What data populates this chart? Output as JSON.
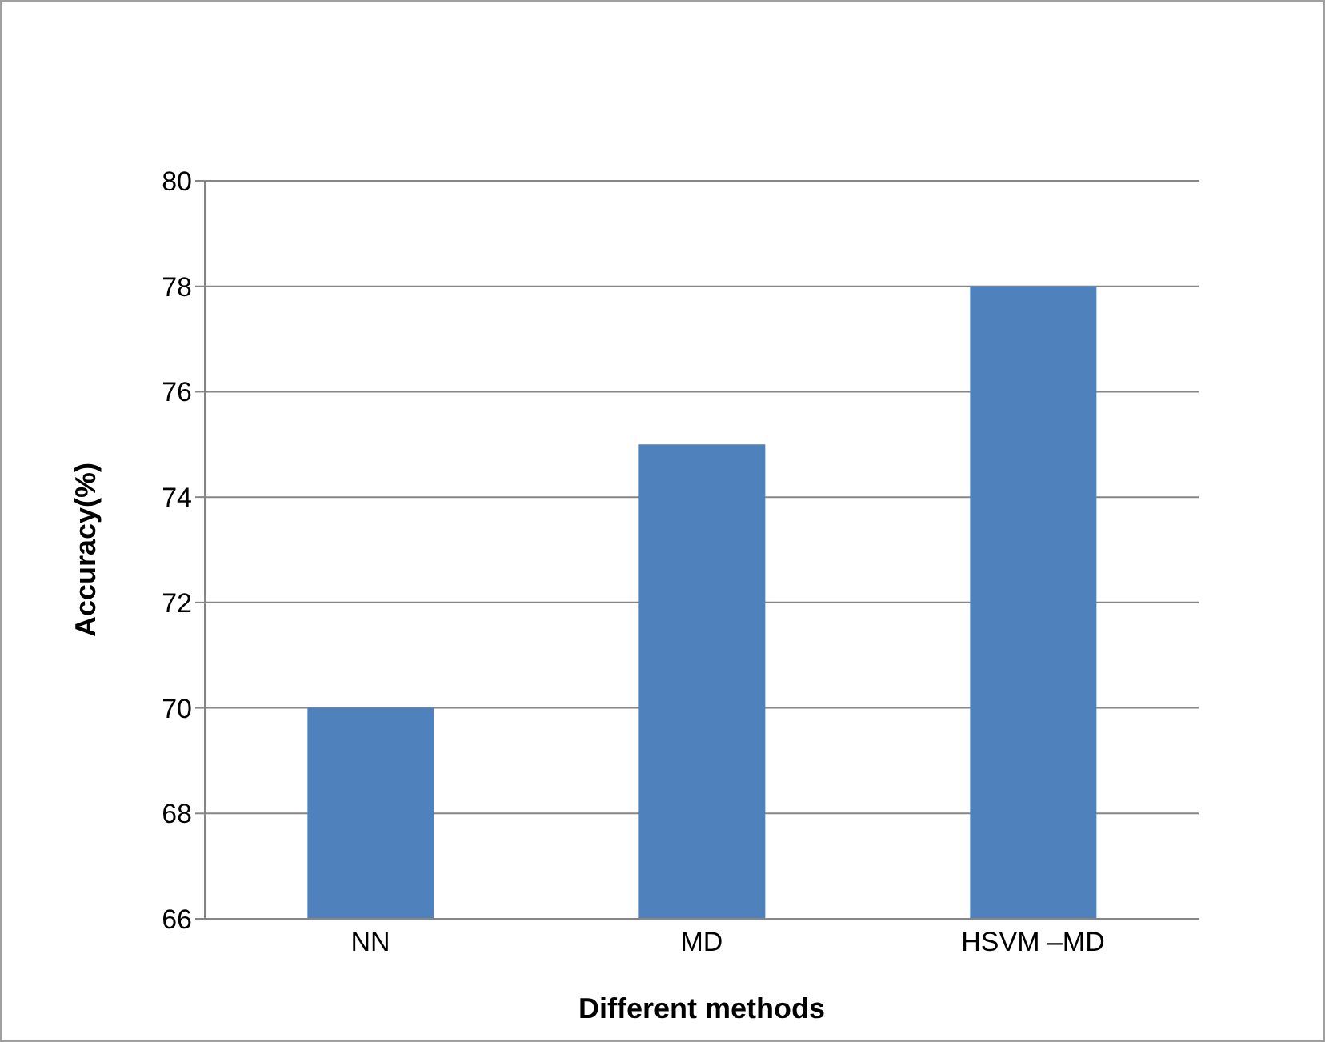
{
  "chart_data": {
    "type": "bar",
    "xlabel": "Different methods",
    "ylabel": "Accuracy(%)",
    "categories": [
      "NN",
      "MD",
      "HSVM –MD"
    ],
    "values": [
      70,
      75,
      78
    ],
    "color": "#4f81bd",
    "ylim": [
      66,
      80
    ],
    "yticks": [
      66,
      68,
      70,
      72,
      74,
      76,
      78,
      80
    ],
    "grid": "y",
    "legend": false
  }
}
